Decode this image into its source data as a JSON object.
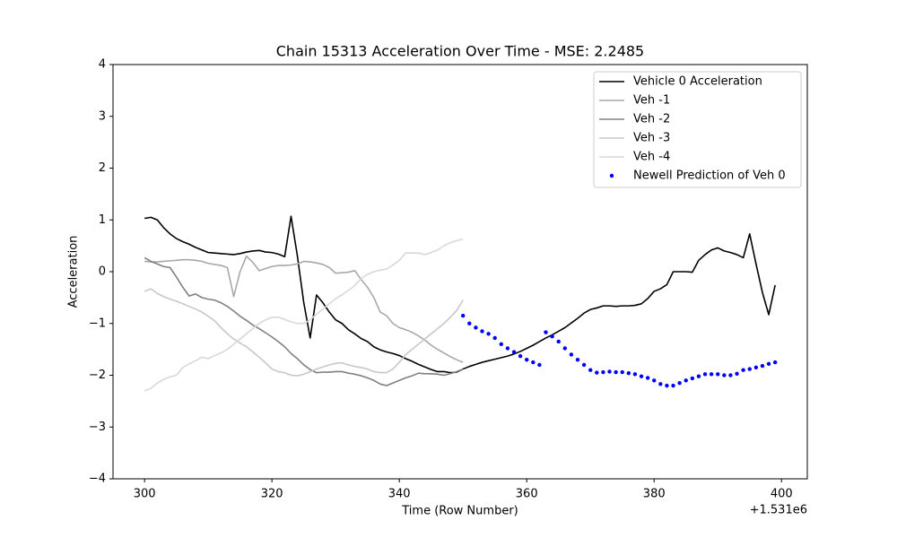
{
  "chart_data": {
    "type": "line",
    "title": "Chain 15313 Acceleration Over Time - MSE: 2.2485",
    "x_label": "Time (Row Number)",
    "y_label": "Acceleration",
    "x_offset_label": "+1.531e6",
    "xlim": [
      1531295.05,
      1531404.05
    ],
    "ylim": [
      -4,
      4
    ],
    "xticks": [
      {
        "value": 1531300,
        "label": "300"
      },
      {
        "value": 1531320,
        "label": "320"
      },
      {
        "value": 1531340,
        "label": "340"
      },
      {
        "value": 1531360,
        "label": "360"
      },
      {
        "value": 1531380,
        "label": "380"
      },
      {
        "value": 1531400,
        "label": "400"
      }
    ],
    "yticks": [
      {
        "value": -4,
        "label": "−4"
      },
      {
        "value": -3,
        "label": "−3"
      },
      {
        "value": -2,
        "label": "−2"
      },
      {
        "value": -1,
        "label": "−1"
      },
      0,
      1,
      2,
      3,
      4
    ],
    "legend": "upper right",
    "x": [
      1531300,
      1531301,
      1531302,
      1531303,
      1531304,
      1531305,
      1531306,
      1531307,
      1531308,
      1531309,
      1531310,
      1531311,
      1531312,
      1531313,
      1531314,
      1531315,
      1531316,
      1531317,
      1531318,
      1531319,
      1531320,
      1531321,
      1531322,
      1531323,
      1531324,
      1531325,
      1531326,
      1531327,
      1531328,
      1531329,
      1531330,
      1531331,
      1531332,
      1531333,
      1531334,
      1531335,
      1531336,
      1531337,
      1531338,
      1531339,
      1531340,
      1531341,
      1531342,
      1531343,
      1531344,
      1531345,
      1531346,
      1531347,
      1531348,
      1531349,
      1531350,
      1531351,
      1531352,
      1531353,
      1531354,
      1531355,
      1531356,
      1531357,
      1531358,
      1531359,
      1531360,
      1531361,
      1531362,
      1531363,
      1531364,
      1531365,
      1531366,
      1531367,
      1531368,
      1531369,
      1531370,
      1531371,
      1531372,
      1531373,
      1531374,
      1531375,
      1531376,
      1531377,
      1531378,
      1531379,
      1531380,
      1531381,
      1531382,
      1531383,
      1531384,
      1531385,
      1531386,
      1531387,
      1531388,
      1531389,
      1531390,
      1531391,
      1531392,
      1531393,
      1531394,
      1531395,
      1531396,
      1531397,
      1531398,
      1531399
    ],
    "series": [
      {
        "name": "Vehicle 0 Acceleration",
        "color": "#000000",
        "marker": "line",
        "values": [
          1.03,
          1.05,
          1.0,
          0.85,
          0.73,
          0.64,
          0.58,
          0.53,
          0.47,
          0.42,
          0.37,
          0.36,
          0.35,
          0.34,
          0.33,
          0.35,
          0.38,
          0.4,
          0.41,
          0.38,
          0.37,
          0.34,
          0.29,
          1.07,
          0.3,
          -0.6,
          -1.28,
          -0.45,
          -0.6,
          -0.78,
          -0.93,
          -1.0,
          -1.12,
          -1.2,
          -1.29,
          -1.35,
          -1.45,
          -1.51,
          -1.55,
          -1.58,
          -1.62,
          -1.68,
          -1.73,
          -1.79,
          -1.84,
          -1.89,
          -1.93,
          -1.93,
          -1.95,
          -1.94,
          -1.88,
          -1.83,
          -1.79,
          -1.75,
          -1.72,
          -1.69,
          -1.66,
          -1.63,
          -1.59,
          -1.54,
          -1.48,
          -1.42,
          -1.35,
          -1.28,
          -1.22,
          -1.15,
          -1.08,
          -0.99,
          -0.9,
          -0.8,
          -0.73,
          -0.7,
          -0.66,
          -0.66,
          -0.67,
          -0.66,
          -0.66,
          -0.65,
          -0.62,
          -0.52,
          -0.38,
          -0.33,
          -0.25,
          0.0,
          0.0,
          0.0,
          -0.01,
          0.22,
          0.33,
          0.42,
          0.46,
          0.4,
          0.37,
          0.33,
          0.27,
          0.73,
          0.15,
          -0.4,
          -0.83,
          -0.26
        ]
      },
      {
        "name": "Veh -1",
        "color": "#a8a8a8",
        "marker": "line",
        "values": [
          0.2,
          0.19,
          0.19,
          0.2,
          0.21,
          0.22,
          0.23,
          0.23,
          0.22,
          0.2,
          0.16,
          0.14,
          0.12,
          0.08,
          -0.48,
          0.0,
          0.3,
          0.18,
          0.02,
          0.06,
          0.1,
          0.12,
          0.12,
          0.13,
          0.15,
          0.2,
          0.19,
          0.17,
          0.14,
          0.08,
          -0.03,
          -0.02,
          -0.01,
          0.02,
          -0.15,
          -0.3,
          -0.5,
          -0.78,
          -0.85,
          -1.0,
          -1.08,
          -1.12,
          -1.17,
          -1.24,
          -1.32,
          -1.42,
          -1.5,
          -1.57,
          -1.64,
          -1.7,
          -1.75,
          null,
          null,
          null,
          null,
          null,
          null,
          null,
          null,
          null,
          null,
          null,
          null,
          null,
          null,
          null,
          null,
          null,
          null,
          null,
          null,
          null,
          null,
          null,
          null,
          null,
          null,
          null,
          null,
          null,
          null,
          null,
          null,
          null,
          null,
          null,
          null,
          null,
          null,
          null,
          null,
          null,
          null,
          null,
          null,
          null,
          null,
          null,
          null,
          null
        ]
      },
      {
        "name": "Veh -2",
        "color": "#808080",
        "marker": "line",
        "values": [
          0.27,
          0.2,
          0.15,
          0.1,
          0.08,
          -0.1,
          -0.3,
          -0.47,
          -0.43,
          -0.5,
          -0.53,
          -0.55,
          -0.6,
          -0.67,
          -0.76,
          -0.86,
          -0.94,
          -1.03,
          -1.1,
          -1.18,
          -1.26,
          -1.35,
          -1.45,
          -1.58,
          -1.68,
          -1.8,
          -1.89,
          -1.95,
          -1.94,
          -1.94,
          -1.93,
          -1.93,
          -1.96,
          -1.98,
          -2.01,
          -2.05,
          -2.1,
          -2.17,
          -2.2,
          -2.15,
          -2.1,
          -2.05,
          -2.01,
          -1.96,
          -1.97,
          -1.97,
          -1.98,
          -2.0,
          -1.97,
          -1.93,
          -1.88,
          null,
          null,
          null,
          null,
          null,
          null,
          null,
          null,
          null,
          null,
          null,
          null,
          null,
          null,
          null,
          null,
          null,
          null,
          null,
          null,
          null,
          null,
          null,
          null,
          null,
          null,
          null,
          null,
          null,
          null,
          null,
          null,
          null,
          null,
          null,
          null,
          null,
          null,
          null,
          null,
          null,
          null,
          null,
          null,
          null,
          null,
          null,
          null,
          null
        ]
      },
      {
        "name": "Veh -3",
        "color": "#c8c8c8",
        "marker": "line",
        "values": [
          -0.38,
          -0.33,
          -0.42,
          -0.48,
          -0.53,
          -0.57,
          -0.62,
          -0.67,
          -0.72,
          -0.78,
          -0.86,
          -0.95,
          -1.08,
          -1.2,
          -1.3,
          -1.38,
          -1.45,
          -1.55,
          -1.65,
          -1.76,
          -1.88,
          -1.93,
          -1.95,
          -2.0,
          -2.01,
          -1.98,
          -1.93,
          -1.88,
          -1.84,
          -1.8,
          -1.77,
          -1.76,
          -1.8,
          -1.83,
          -1.85,
          -1.88,
          -1.93,
          -1.95,
          -1.95,
          -1.88,
          -1.75,
          -1.6,
          -1.5,
          -1.4,
          -1.3,
          -1.2,
          -1.1,
          -1.0,
          -0.88,
          -0.75,
          -0.55,
          null,
          null,
          null,
          null,
          null,
          null,
          null,
          null,
          null,
          null,
          null,
          null,
          null,
          null,
          null,
          null,
          null,
          null,
          null,
          null,
          null,
          null,
          null,
          null,
          null,
          null,
          null,
          null,
          null,
          null,
          null,
          null,
          null,
          null,
          null,
          null,
          null,
          null,
          null,
          null,
          null,
          null,
          null,
          null,
          null,
          null,
          null,
          null,
          null
        ]
      },
      {
        "name": "Veh -4",
        "color": "#d8d8d8",
        "marker": "line",
        "values": [
          -2.3,
          -2.25,
          -2.15,
          -2.08,
          -2.03,
          -2.0,
          -1.85,
          -1.78,
          -1.72,
          -1.65,
          -1.68,
          -1.62,
          -1.57,
          -1.5,
          -1.4,
          -1.3,
          -1.2,
          -1.1,
          -1.0,
          -0.93,
          -0.88,
          -0.88,
          -0.92,
          -0.97,
          -1.0,
          -1.0,
          -0.93,
          -0.82,
          -0.72,
          -0.62,
          -0.52,
          -0.45,
          -0.36,
          -0.27,
          -0.13,
          -0.05,
          0.0,
          0.03,
          0.05,
          0.13,
          0.22,
          0.36,
          0.36,
          0.36,
          0.33,
          0.37,
          0.42,
          0.5,
          0.56,
          0.6,
          0.63,
          null,
          null,
          null,
          null,
          null,
          null,
          null,
          null,
          null,
          null,
          null,
          null,
          null,
          null,
          null,
          null,
          null,
          null,
          null,
          null,
          null,
          null,
          null,
          null,
          null,
          null,
          null,
          null,
          null,
          null,
          null,
          null,
          null,
          null,
          null,
          null,
          null,
          null,
          null,
          null,
          null,
          null,
          null,
          null,
          null,
          null,
          null,
          null,
          null
        ]
      },
      {
        "name": "Newell Prediction of Veh 0",
        "color": "#0000ff",
        "marker": "dot",
        "values": [
          null,
          null,
          null,
          null,
          null,
          null,
          null,
          null,
          null,
          null,
          null,
          null,
          null,
          null,
          null,
          null,
          null,
          null,
          null,
          null,
          null,
          null,
          null,
          null,
          null,
          null,
          null,
          null,
          null,
          null,
          null,
          null,
          null,
          null,
          null,
          null,
          null,
          null,
          null,
          null,
          null,
          null,
          null,
          null,
          null,
          null,
          null,
          null,
          null,
          null,
          -0.85,
          -1.0,
          -1.08,
          -1.15,
          -1.2,
          -1.28,
          -1.4,
          -1.48,
          -1.55,
          -1.63,
          -1.7,
          -1.75,
          -1.8,
          -1.17,
          -1.25,
          -1.35,
          -1.48,
          -1.6,
          -1.7,
          -1.8,
          -1.9,
          -1.95,
          -1.94,
          -1.93,
          -1.94,
          -1.94,
          -1.96,
          -1.98,
          -2.02,
          -2.05,
          -2.1,
          -2.17,
          -2.2,
          -2.2,
          -2.15,
          -2.1,
          -2.06,
          -2.02,
          -1.98,
          -1.98,
          -1.98,
          -2.0,
          -2.0,
          -1.97,
          -1.9,
          -1.88,
          -1.85,
          -1.82,
          -1.78,
          -1.75
        ]
      }
    ]
  }
}
